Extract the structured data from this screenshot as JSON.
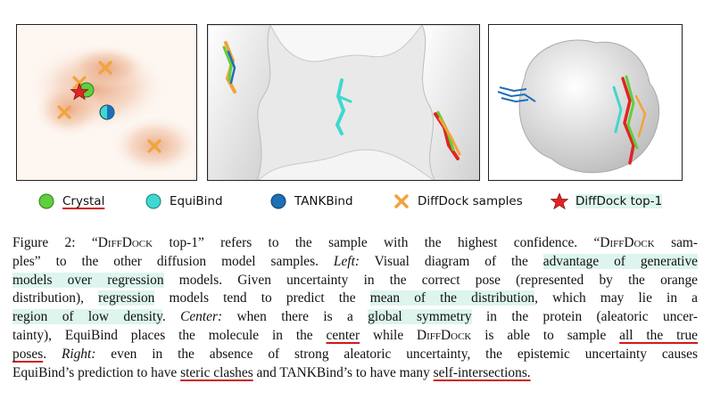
{
  "figure": {
    "panels": [
      "left",
      "center",
      "right"
    ],
    "legend": [
      {
        "label": "Crystal",
        "marker": "green-circle",
        "color": "#5fcf3b",
        "style": "underline"
      },
      {
        "label": "EquiBind",
        "marker": "cyan-circle",
        "color": "#3fd8cf",
        "style": "plain"
      },
      {
        "label": "TANKBind",
        "marker": "blue-circle",
        "color": "#1f6fb8",
        "style": "plain"
      },
      {
        "label": "DiffDock samples",
        "marker": "orange-x",
        "color": "#f2a33a",
        "style": "plain"
      },
      {
        "label": "DiffDock top-1",
        "marker": "red-star",
        "color": "#e02424",
        "style": "highlight"
      }
    ]
  },
  "caption": {
    "lines": [
      [
        {
          "t": "Figure 2: “"
        },
        {
          "t": "DiffDock",
          "sc": true
        },
        {
          "t": " top-1” refers to the sample with the highest confidence. “"
        },
        {
          "t": "DiffDock",
          "sc": true
        },
        {
          "t": " sam-"
        }
      ],
      [
        {
          "t": "ples” to the other diffusion model samples. "
        },
        {
          "t": "Left:",
          "em": true
        },
        {
          "t": " Visual diagram of the "
        },
        {
          "t": "advantage of generative",
          "hl": true
        }
      ],
      [
        {
          "t": "models over regression",
          "hl": true
        },
        {
          "t": " models. Given uncertainty in the correct pose (represented by the orange"
        }
      ],
      [
        {
          "t": "distribution), "
        },
        {
          "t": "regression",
          "hl": true
        },
        {
          "t": " models tend to predict the "
        },
        {
          "t": "mean of the distribution",
          "hl": true
        },
        {
          "t": ", which may lie in a"
        }
      ],
      [
        {
          "t": "region of low density",
          "hl": true
        },
        {
          "t": ". "
        },
        {
          "t": "Center:",
          "em": true
        },
        {
          "t": " when there is a "
        },
        {
          "t": "global symmetry",
          "hl": true
        },
        {
          "t": " in the protein (aleatoric uncer-"
        }
      ],
      [
        {
          "t": "tainty), EquiBind places the molecule in the "
        },
        {
          "t": "center",
          "ul": true
        },
        {
          "t": " while "
        },
        {
          "t": "DiffDock",
          "sc": true
        },
        {
          "t": " is able to sample "
        },
        {
          "t": "all the true",
          "ul": true
        }
      ],
      [
        {
          "t": "poses",
          "ul": true
        },
        {
          "t": ". "
        },
        {
          "t": "Right:",
          "em": true
        },
        {
          "t": " even in the absence of strong aleatoric uncertainty, the epistemic uncertainty causes"
        }
      ],
      [
        {
          "t": "EquiBind’s prediction to have "
        },
        {
          "t": "steric clashes",
          "ul": true
        },
        {
          "t": " and TANKBind’s to have many "
        },
        {
          "t": "self-intersections.",
          "ul": true
        }
      ]
    ]
  }
}
